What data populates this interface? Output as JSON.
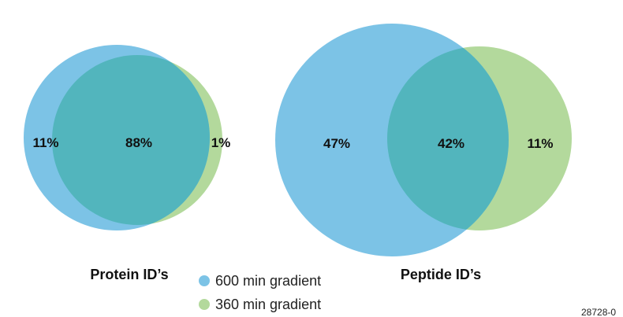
{
  "colors": {
    "series_600": "#7CC3E6",
    "series_360": "#B3D99C",
    "overlap": "#52B5BD"
  },
  "protein": {
    "title": "Protein ID’s",
    "left_only": "11%",
    "overlap": "88%",
    "right_only": "1%"
  },
  "peptide": {
    "title": "Peptide ID’s",
    "left_only": "47%",
    "overlap": "42%",
    "right_only": "11%"
  },
  "legend": {
    "items": [
      {
        "label": "600 min gradient",
        "color": "#7CC3E6"
      },
      {
        "label": "360 min gradient",
        "color": "#B3D99C"
      }
    ]
  },
  "figure_id": "28728-0"
}
